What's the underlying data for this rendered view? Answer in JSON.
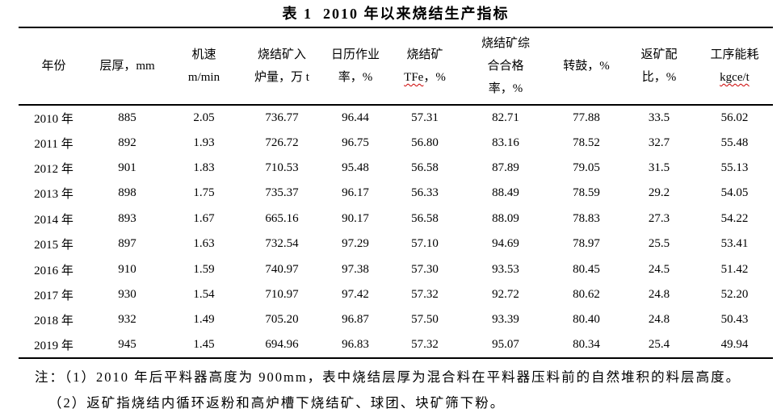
{
  "title": "表 1  2010 年以来烧结生产指标",
  "table": {
    "columns": [
      {
        "id": "year",
        "lines": [
          "年份"
        ]
      },
      {
        "id": "layer-thickness",
        "lines": [
          "层厚，mm"
        ]
      },
      {
        "id": "machine-speed",
        "lines": [
          "机速",
          "m/min"
        ]
      },
      {
        "id": "sinter-output",
        "lines": [
          "烧结矿入",
          "炉量，万 t"
        ]
      },
      {
        "id": "calendar-rate",
        "lines": [
          "日历作业",
          "率，%"
        ]
      },
      {
        "id": "sinter-tfe",
        "lines": [
          "烧结矿",
          "TFe，%"
        ],
        "wavy": "TFe"
      },
      {
        "id": "pass-rate",
        "lines": [
          "烧结矿综",
          "合合格",
          "率，%"
        ]
      },
      {
        "id": "tumbler-index",
        "lines": [
          "转鼓，%"
        ]
      },
      {
        "id": "return-ratio",
        "lines": [
          "返矿配",
          "比，%"
        ]
      },
      {
        "id": "energy-consumption",
        "lines": [
          "工序能耗",
          "kgce/t"
        ],
        "wavy": "kgce/t"
      }
    ],
    "rows": [
      {
        "year": "2010 年",
        "values": [
          "885",
          "2.05",
          "736.77",
          "96.44",
          "57.31",
          "82.71",
          "77.88",
          "33.5",
          "56.02"
        ]
      },
      {
        "year": "2011 年",
        "values": [
          "892",
          "1.93",
          "726.72",
          "96.75",
          "56.80",
          "83.16",
          "78.52",
          "32.7",
          "55.48"
        ]
      },
      {
        "year": "2012 年",
        "values": [
          "901",
          "1.83",
          "710.53",
          "95.48",
          "56.58",
          "87.89",
          "79.05",
          "31.5",
          "55.13"
        ]
      },
      {
        "year": "2013 年",
        "values": [
          "898",
          "1.75",
          "735.37",
          "96.17",
          "56.33",
          "88.49",
          "78.59",
          "29.2",
          "54.05"
        ]
      },
      {
        "year": "2014 年",
        "values": [
          "893",
          "1.67",
          "665.16",
          "90.17",
          "56.58",
          "88.09",
          "78.83",
          "27.3",
          "54.22"
        ]
      },
      {
        "year": "2015 年",
        "values": [
          "897",
          "1.63",
          "732.54",
          "97.29",
          "57.10",
          "94.69",
          "78.97",
          "25.5",
          "53.41"
        ]
      },
      {
        "year": "2016 年",
        "values": [
          "910",
          "1.59",
          "740.97",
          "97.38",
          "57.30",
          "93.53",
          "80.45",
          "24.5",
          "51.42"
        ]
      },
      {
        "year": "2017 年",
        "values": [
          "930",
          "1.54",
          "710.97",
          "97.42",
          "57.32",
          "92.72",
          "80.62",
          "24.8",
          "52.20"
        ]
      },
      {
        "year": "2018 年",
        "values": [
          "932",
          "1.49",
          "705.20",
          "96.87",
          "57.50",
          "93.39",
          "80.40",
          "24.8",
          "50.43"
        ]
      },
      {
        "year": "2019 年",
        "values": [
          "945",
          "1.45",
          "694.96",
          "96.83",
          "57.32",
          "95.07",
          "80.34",
          "25.4",
          "49.94"
        ]
      }
    ]
  },
  "notes": [
    "注：（1）2010 年后平料器高度为 900mm，表中烧结层厚为混合料在平料器压料前的自然堆积的料层高度。",
    "（2）返矿指烧结内循环返粉和高炉槽下烧结矿、球团、块矿筛下粉。"
  ],
  "colors": {
    "text": "#000000",
    "rule": "#000000",
    "spellcheck_underline": "#cc0000",
    "background": "#ffffff"
  }
}
